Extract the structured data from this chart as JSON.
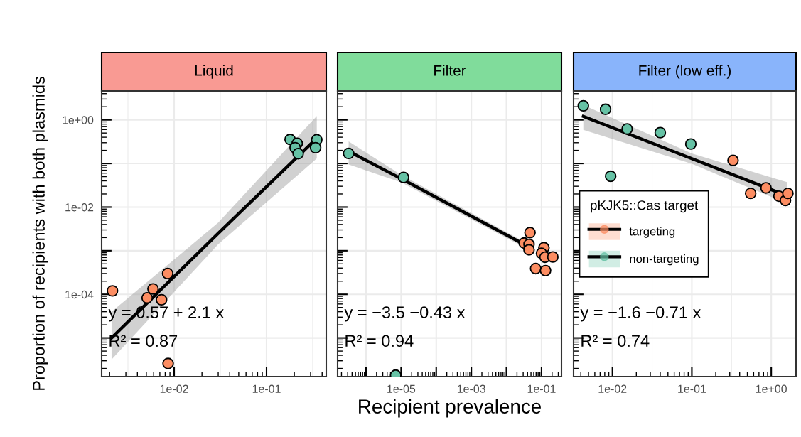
{
  "chart_data": [
    {
      "type": "scatter",
      "title": "Liquid",
      "ylabel": "Proportion of recipients with both plasmids",
      "log": "xy",
      "grid": true,
      "xlim": [
        0.00164,
        0.443
      ],
      "xticks": [
        {
          "value": 0.00316,
          "label": null
        },
        {
          "value": 0.01,
          "label": "1e-02"
        },
        {
          "value": 0.0316,
          "label": null
        },
        {
          "value": 0.1,
          "label": "1e-01"
        },
        {
          "value": 0.316,
          "label": null
        }
      ],
      "ylim": [
        1.3e-06,
        4.6
      ],
      "yticks": [
        {
          "value": 1,
          "label": "1e+00"
        },
        {
          "value": 0.1,
          "label": null
        },
        {
          "value": 0.01,
          "label": "1e-02"
        },
        {
          "value": 0.001,
          "label": null
        },
        {
          "value": 0.0001,
          "label": "1e-04"
        },
        {
          "value": 1e-05,
          "label": null
        }
      ],
      "series": [
        {
          "marker": "circle",
          "color": "#fc8d62",
          "x": [
            0.00215,
            0.0059,
            0.0051,
            0.0073,
            0.0085,
            0.0086
          ],
          "values": [
            0.00012,
            0.000133,
            8.3e-05,
            7.5e-05,
            0.0003,
            2.6e-06
          ]
        },
        {
          "marker": "circle",
          "color": "#66c2a5",
          "x": [
            0.18,
            0.215,
            0.204,
            0.22,
            0.35,
            0.34
          ],
          "values": [
            0.355,
            0.29,
            0.23,
            0.168,
            0.35,
            0.23
          ]
        },
        {
          "type": "line",
          "color": "#000000",
          "x": [
            0.0021,
            0.03,
            0.35
          ],
          "values": [
            1e-05,
            0.0025,
            0.38
          ],
          "lower": [
            3.2e-06,
            0.0014,
            0.13
          ],
          "upper": [
            4e-05,
            0.0044,
            1.23
          ]
        }
      ],
      "annotations": [
        "y = 0.57 + 2.1 x",
        "R² = 0.87"
      ]
    },
    {
      "type": "scatter",
      "title": "Filter",
      "xlabel": "Recipient prevalence",
      "log": "xy",
      "grid": true,
      "tick_labels": "x",
      "xlim": [
        1.55e-07,
        0.37
      ],
      "xticks": [
        {
          "value": 1e-06,
          "label": null
        },
        {
          "value": 1e-05,
          "label": "1e-05"
        },
        {
          "value": 0.0001,
          "label": null
        },
        {
          "value": 0.001,
          "label": "1e-03"
        },
        {
          "value": 0.01,
          "label": null
        },
        {
          "value": 0.1,
          "label": "1e-01"
        }
      ],
      "ylim": [
        1.3e-06,
        4.6
      ],
      "yticks": [
        {
          "value": 1,
          "label": null
        },
        {
          "value": 0.1,
          "label": null
        },
        {
          "value": 0.01,
          "label": null
        },
        {
          "value": 0.001,
          "label": null
        },
        {
          "value": 0.0001,
          "label": null
        },
        {
          "value": 1e-05,
          "label": null
        }
      ],
      "series": [
        {
          "marker": "circle",
          "color": "#fc8d62",
          "x": [
            0.047,
            0.032,
            0.044,
            0.044,
            0.117,
            0.1,
            0.126,
            0.21,
            0.068,
            0.13
          ],
          "values": [
            0.0026,
            0.0015,
            0.0014,
            0.00105,
            0.00117,
            0.00087,
            0.00071,
            0.00072,
            0.00039,
            0.00035
          ]
        },
        {
          "marker": "circle",
          "color": "#66c2a5",
          "x": [
            3.2e-07,
            1.17e-05,
            7e-06
          ],
          "values": [
            0.17,
            0.048,
            1.4e-06
          ]
        },
        {
          "type": "line",
          "color": "#000000",
          "x": [
            3.2e-07,
            1e-05,
            0.032
          ],
          "values": [
            0.19,
            0.045,
            0.0014
          ],
          "lower": [
            0.095,
            0.037,
            0.0012
          ],
          "upper": [
            0.32,
            0.055,
            0.0016
          ]
        }
      ],
      "annotations": [
        "y = −3.5 −0.43 x",
        "R² = 0.94"
      ]
    },
    {
      "type": "scatter",
      "title": "Filter (low eff.)",
      "log": "xy",
      "grid": true,
      "legend": "center left",
      "legend_title": "pKJK5::Cas target",
      "tick_labels": "x",
      "xlim": [
        0.00324,
        2.05
      ],
      "xticks": [
        {
          "value": 0.01,
          "label": "1e-02"
        },
        {
          "value": 0.0316,
          "label": null
        },
        {
          "value": 0.1,
          "label": "1e-01"
        },
        {
          "value": 0.316,
          "label": null
        },
        {
          "value": 1,
          "label": "1e+00"
        }
      ],
      "ylim": [
        1.3e-06,
        4.6
      ],
      "yticks": [
        {
          "value": 1,
          "label": null
        },
        {
          "value": 0.1,
          "label": null
        },
        {
          "value": 0.01,
          "label": null
        },
        {
          "value": 0.001,
          "label": null
        },
        {
          "value": 0.0001,
          "label": null
        },
        {
          "value": 1e-05,
          "label": null
        }
      ],
      "series": [
        {
          "marker": "circle",
          "name": "targeting",
          "color": "#fc8d62",
          "x": [
            0.33,
            0.55,
            0.86,
            1.25,
            1.51,
            1.62
          ],
          "values": [
            0.118,
            0.0206,
            0.0275,
            0.0178,
            0.0142,
            0.0206
          ]
        },
        {
          "marker": "circle",
          "name": "non-targeting",
          "color": "#66c2a5",
          "x": [
            0.0043,
            0.0082,
            0.0153,
            0.04,
            0.097,
            0.0095
          ],
          "values": [
            2.1,
            1.75,
            0.62,
            0.51,
            0.28,
            0.051
          ]
        },
        {
          "type": "line",
          "color": "#000000",
          "x": [
            0.0043,
            0.1,
            1.6
          ],
          "values": [
            1.2,
            0.129,
            0.018
          ],
          "lower": [
            0.59,
            0.098,
            0.012
          ],
          "upper": [
            2.2,
            0.17,
            0.037
          ]
        }
      ],
      "annotations": [
        "y = −1.6 −0.71 x",
        "R² = 0.74"
      ]
    }
  ]
}
